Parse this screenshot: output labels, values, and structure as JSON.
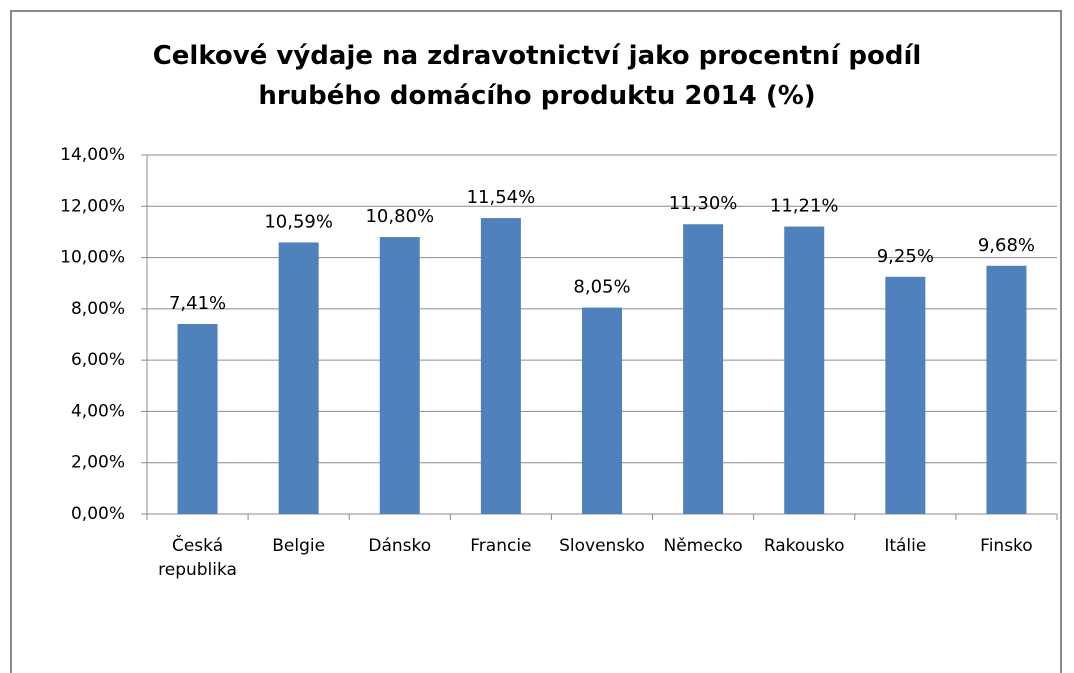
{
  "chart_data": {
    "type": "bar",
    "title": "Celkové výdaje na zdravotnictví jako procentní podíl hrubého domácího produktu 2014 (%)",
    "categories": [
      "Česká republika",
      "Belgie",
      "Dánsko",
      "Francie",
      "Slovensko",
      "Německo",
      "Rakousko",
      "Itálie",
      "Finsko"
    ],
    "values": [
      7.41,
      10.59,
      10.8,
      11.54,
      8.05,
      11.3,
      11.21,
      9.25,
      9.68
    ],
    "value_labels": [
      "7,41%",
      "10,59%",
      "10,80%",
      "11,54%",
      "8,05%",
      "11,30%",
      "11,21%",
      "9,25%",
      "9,68%"
    ],
    "color": "#4f81bd",
    "ylim": [
      0,
      14
    ],
    "yticks": [
      {
        "value": 0,
        "label": "0,00%"
      },
      {
        "value": 2,
        "label": "2,00%"
      },
      {
        "value": 4,
        "label": "4,00%"
      },
      {
        "value": 6,
        "label": "6,00%"
      },
      {
        "value": 8,
        "label": "8,00%"
      },
      {
        "value": 10,
        "label": "10,00%"
      },
      {
        "value": 12,
        "label": "12,00%"
      },
      {
        "value": 14,
        "label": "14,00%"
      }
    ],
    "grid": true
  }
}
